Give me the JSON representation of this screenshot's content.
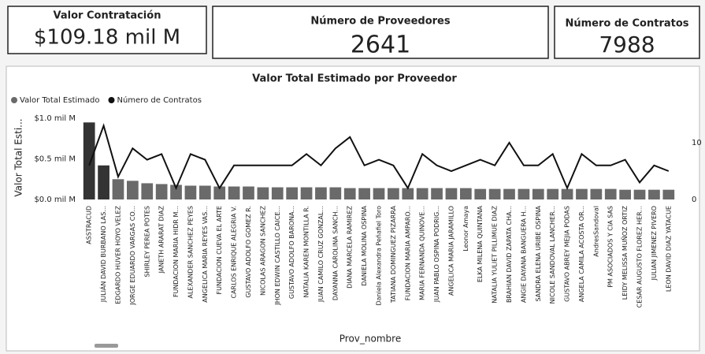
{
  "cards": [
    {
      "title": "Valor Contratación",
      "value": "$109.18 mil M"
    },
    {
      "title": "Número de Proveedores",
      "value": "2641"
    },
    {
      "title": "Número de Contratos",
      "value": "7988"
    }
  ],
  "chart_data": {
    "type": "combo",
    "title": "Valor Total Estimado por Proveedor",
    "x_label": "Prov_nombre",
    "y_label": "Valor Total Esti...",
    "categories": [
      "ASSTRACUD",
      "JULIÁN DAVID BURBANO LAS...",
      "EDGARDO HUVER HOYO VELEZ",
      "JORGE EDUARDO VARGAS CO...",
      "SHIRLEY PEREA POTES",
      "JANETH ARARAT DIAZ",
      "FUNDACION MARIA HIDR M...",
      "ALEXANDER SANCHEZ PEYES",
      "ANGELICA MARIA REYES VAS...",
      "FUNDACION CUEVA EL ARTE",
      "CARLOS ENRIQUE ALEGRIA V.",
      "GUSTAVO ADOLFO GOMEZ R.",
      "NICOLAS ARAGON SANCHEZ",
      "JHON EDWIN CASTILLO CAICE...",
      "GUSTAVO ADOLFO BARONA...",
      "NATALIA KAREN MONTILLA R.",
      "JUAN CAMILO CRUZ GONZAL...",
      "DAYANNA CAROLINA SANCH...",
      "DIANA MARCELA RAMIREZ",
      "DANIELA MOLINA OSPINA",
      "Daniela Alexandra Peñafiel Toro",
      "TATIANA DOMINGUEZ PIZARRA",
      "FUNDACION MARIA AMPARO...",
      "MARIA FERNANDA QUINOVE...",
      "JUAN PABLO OSPINA PODRIG...",
      "ANGELICA MARIA JARAMILLO",
      "Leonor Amaya",
      "ELKA MILENA QUINTANA",
      "NATALIA YULIET PILLIMUE DIAZ",
      "BRAHIAN DAVID ZAPATA CHA...",
      "ANGIE DAYANA BANGUERA H...",
      "SANDRA ELENA URIBE OSPINA",
      "NICOLE SANDOVAL LANCHER...",
      "GUSTAVO ABREY MEJIA PODAS",
      "ANGELA CAMILA ACOSTA OR...",
      "AndresSandoval",
      "PM ASOCIADOS Y CIA SAS",
      "LEIDY MELISSA MUÑOZ ORTIZ",
      "CESAR AUGUSTO FLOREZ HER...",
      "JULIAN JIMENEZ PIVERO",
      "LEON DAVID DIAZ YATACUE"
    ],
    "series": [
      {
        "name": "Valor Total Estimado",
        "color": "#6a6a6a",
        "values": [
          0.95,
          0.42,
          0.25,
          0.23,
          0.2,
          0.19,
          0.18,
          0.17,
          0.17,
          0.16,
          0.16,
          0.16,
          0.15,
          0.15,
          0.15,
          0.15,
          0.15,
          0.15,
          0.14,
          0.14,
          0.14,
          0.14,
          0.14,
          0.14,
          0.14,
          0.14,
          0.14,
          0.13,
          0.13,
          0.13,
          0.13,
          0.13,
          0.13,
          0.13,
          0.13,
          0.13,
          0.13,
          0.12,
          0.12,
          0.12,
          0.12
        ]
      },
      {
        "name": "Número de Contratos",
        "color": "#111111",
        "axis": "y2",
        "values": [
          6,
          13,
          4,
          9,
          7,
          8,
          2,
          8,
          7,
          2,
          6,
          6,
          6,
          6,
          6,
          8,
          6,
          9,
          11,
          6,
          7,
          6,
          2,
          8,
          6,
          5,
          6,
          7,
          6,
          10,
          6,
          6,
          8,
          2,
          8,
          6,
          6,
          7,
          3,
          6,
          5
        ]
      }
    ],
    "ylim": [
      0,
      1.05
    ],
    "yticks": [
      {
        "value": 0,
        "label": "$0.0 mil M"
      },
      {
        "value": 0.5,
        "label": "$0.5 mil M"
      },
      {
        "value": 1.0,
        "label": "$1.0 mil M"
      }
    ],
    "y2lim": [
      0,
      15
    ],
    "y2ticks": [
      0,
      10
    ],
    "grid": false,
    "legend": "top-left"
  }
}
